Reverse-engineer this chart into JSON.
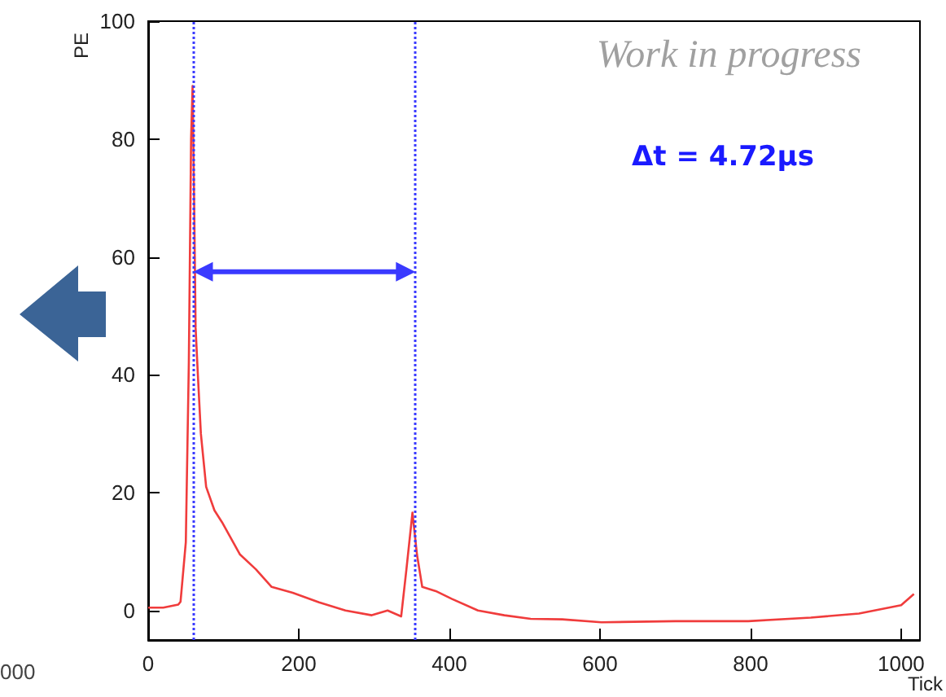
{
  "chart_data": {
    "type": "line",
    "xlabel": "Tick",
    "ylabel": "PE",
    "x": [
      0,
      20,
      40,
      43,
      50,
      54,
      57,
      59,
      61,
      63,
      66,
      70,
      77,
      88,
      98,
      122,
      143,
      164,
      192,
      227,
      262,
      297,
      318,
      336,
      343,
      351,
      357,
      364,
      382,
      403,
      438,
      473,
      508,
      550,
      602,
      700,
      797,
      880,
      944,
      1000,
      1017
    ],
    "series": [
      {
        "color": "#f03c3c",
        "values": [
          0.5,
          0.5,
          1,
          1.5,
          11.6,
          42,
          80,
          89,
          70,
          48,
          40,
          30,
          21,
          17,
          15,
          9.5,
          7,
          4,
          3,
          1.4,
          0,
          -0.8,
          0,
          -1,
          7,
          16.6,
          9.5,
          4,
          3.3,
          2,
          0,
          -0.8,
          -1.4,
          -1.5,
          -2,
          -1.8,
          -1.8,
          -1.2,
          -0.5,
          0.9,
          2.8
        ]
      }
    ],
    "xlim": [
      0,
      1025
    ],
    "ylim": [
      -5,
      100
    ],
    "xticks": [
      0,
      200,
      400,
      600,
      800,
      1000
    ],
    "yticks": [
      0,
      20,
      40,
      60,
      80,
      100
    ],
    "marker": "none",
    "line_style": "solid",
    "ref_lines": [
      {
        "axis": "x",
        "value": 60,
        "label": null,
        "color": "#3a3aff",
        "line_style": "dotted"
      },
      {
        "axis": "x",
        "value": 355,
        "label": null,
        "color": "#3a3aff",
        "line_style": "dotted"
      }
    ],
    "annotations": [
      "Work in progress",
      "Δt = 4.72μs",
      "000"
    ]
  }
}
